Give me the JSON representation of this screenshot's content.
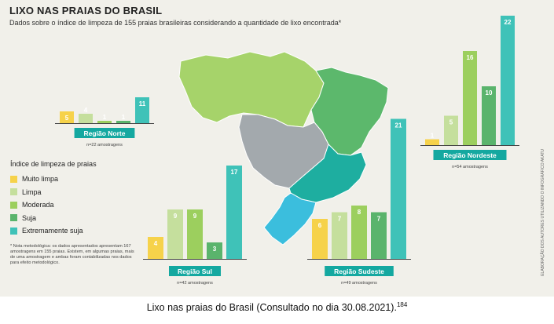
{
  "title": "LIXO NAS PRAIAS DO BRASIL",
  "subtitle": "Dados sobre o índice de limpeza de 155 praias brasileiras considerando a quantidade de lixo encontrada*",
  "credit": "ELABORAÇÃO DOS AUTORES UTILIZANDO O INFOGRÁFICO AKATU",
  "legend_title": "Índice de limpeza de praias",
  "note": "* Nota metodológica: os dados apresentados apresentam 167 amostragens em 155 praias. Existem, em algumas praias, mais de uma amostragem e ambas foram contabilizadas nos dados para efeito metodológico.",
  "caption": "Lixo nas praias do Brasil (Consultado no dia 30.08.2021).",
  "caption_ref": "184",
  "colors": {
    "muito_limpa": "#f6d24a",
    "limpa": "#c5df9d",
    "moderada": "#9ccf5e",
    "suja": "#5ab46c",
    "extremamente_suja": "#3fc2b8",
    "region_label_bg": "#14a8a0",
    "map_norte": "#a6d36a",
    "map_nordeste": "#5cb86c",
    "map_centro_oeste": "#a3a9ad",
    "map_sudeste": "#1eaea0",
    "map_sul": "#3bbedd"
  },
  "chart_data": {
    "type": "bar",
    "title": "LIXO NAS PRAIAS DO BRASIL",
    "categories": [
      "Muito limpa",
      "Limpa",
      "Moderada",
      "Suja",
      "Extremamente suja"
    ],
    "legend": "left",
    "regions": [
      {
        "name": "Região Norte",
        "samples": "n=22 amostragens",
        "values": [
          5,
          4,
          1,
          1,
          11
        ]
      },
      {
        "name": "Região Nordeste",
        "samples": "n=54 amostragens",
        "values": [
          1,
          5,
          16,
          10,
          22
        ]
      },
      {
        "name": "Região Sul",
        "samples": "n=42 amostragens",
        "values": [
          4,
          9,
          9,
          3,
          17
        ]
      },
      {
        "name": "Região Sudeste",
        "samples": "n=49 amostragens",
        "values": [
          6,
          7,
          8,
          7,
          21
        ]
      }
    ]
  }
}
